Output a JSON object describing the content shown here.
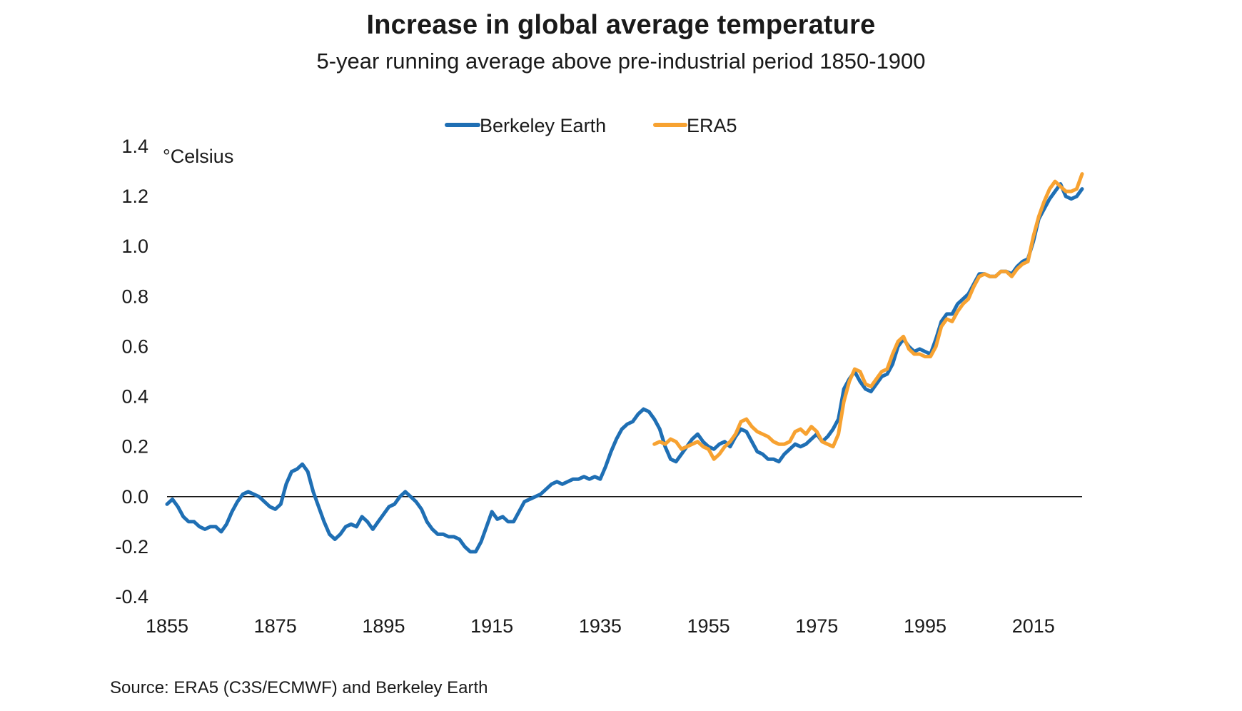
{
  "chart_data": {
    "type": "line",
    "title": "Increase in global average temperature",
    "subtitle": "5-year running average above pre-industrial period 1850-1900",
    "ylabel": "°Celsius",
    "xlabel": "",
    "source": "Source: ERA5 (C3S/ECMWF) and Berkeley Earth",
    "xlim": [
      1855,
      2024
    ],
    "ylim": [
      -0.4,
      1.4
    ],
    "x_ticks": [
      1855,
      1875,
      1895,
      1915,
      1935,
      1955,
      1975,
      1995,
      2015
    ],
    "x_tick_labels": [
      "1855",
      "1875",
      "1895",
      "1915",
      "1935",
      "1955",
      "1975",
      "1995",
      "2015"
    ],
    "y_ticks": [
      -0.4,
      -0.2,
      0.0,
      0.2,
      0.4,
      0.6,
      0.8,
      1.0,
      1.2,
      1.4
    ],
    "y_tick_labels": [
      "-0.4",
      "-0.2",
      "0.0",
      "0.2",
      "0.4",
      "0.6",
      "0.8",
      "1.0",
      "1.2",
      "1.4"
    ],
    "zero_line": 0,
    "grid": false,
    "legend_position": "top-center",
    "series": [
      {
        "name": "Berkeley Earth",
        "color": "#1f6fb4",
        "x": [
          1855,
          1856,
          1857,
          1858,
          1859,
          1860,
          1861,
          1862,
          1863,
          1864,
          1865,
          1866,
          1867,
          1868,
          1869,
          1870,
          1871,
          1872,
          1873,
          1874,
          1875,
          1876,
          1877,
          1878,
          1879,
          1880,
          1881,
          1882,
          1883,
          1884,
          1885,
          1886,
          1887,
          1888,
          1889,
          1890,
          1891,
          1892,
          1893,
          1894,
          1895,
          1896,
          1897,
          1898,
          1899,
          1900,
          1901,
          1902,
          1903,
          1904,
          1905,
          1906,
          1907,
          1908,
          1909,
          1910,
          1911,
          1912,
          1913,
          1914,
          1915,
          1916,
          1917,
          1918,
          1919,
          1920,
          1921,
          1922,
          1923,
          1924,
          1925,
          1926,
          1927,
          1928,
          1929,
          1930,
          1931,
          1932,
          1933,
          1934,
          1935,
          1936,
          1937,
          1938,
          1939,
          1940,
          1941,
          1942,
          1943,
          1944,
          1945,
          1946,
          1947,
          1948,
          1949,
          1950,
          1951,
          1952,
          1953,
          1954,
          1955,
          1956,
          1957,
          1958,
          1959,
          1960,
          1961,
          1962,
          1963,
          1964,
          1965,
          1966,
          1967,
          1968,
          1969,
          1970,
          1971,
          1972,
          1973,
          1974,
          1975,
          1976,
          1977,
          1978,
          1979,
          1980,
          1981,
          1982,
          1983,
          1984,
          1985,
          1986,
          1987,
          1988,
          1989,
          1990,
          1991,
          1992,
          1993,
          1994,
          1995,
          1996,
          1997,
          1998,
          1999,
          2000,
          2001,
          2002,
          2003,
          2004,
          2005,
          2006,
          2007,
          2008,
          2009,
          2010,
          2011,
          2012,
          2013,
          2014,
          2015,
          2016,
          2017,
          2018,
          2019,
          2020,
          2021,
          2022,
          2023,
          2024
        ],
        "values": [
          -0.03,
          -0.01,
          -0.04,
          -0.08,
          -0.1,
          -0.1,
          -0.12,
          -0.13,
          -0.12,
          -0.12,
          -0.14,
          -0.11,
          -0.06,
          -0.02,
          0.01,
          0.02,
          0.01,
          0.0,
          -0.02,
          -0.04,
          -0.05,
          -0.03,
          0.05,
          0.1,
          0.11,
          0.13,
          0.1,
          0.02,
          -0.04,
          -0.1,
          -0.15,
          -0.17,
          -0.15,
          -0.12,
          -0.11,
          -0.12,
          -0.08,
          -0.1,
          -0.13,
          -0.1,
          -0.07,
          -0.04,
          -0.03,
          0.0,
          0.02,
          0.0,
          -0.02,
          -0.05,
          -0.1,
          -0.13,
          -0.15,
          -0.15,
          -0.16,
          -0.16,
          -0.17,
          -0.2,
          -0.22,
          -0.22,
          -0.18,
          -0.12,
          -0.06,
          -0.09,
          -0.08,
          -0.1,
          -0.1,
          -0.06,
          -0.02,
          -0.01,
          0.0,
          0.01,
          0.03,
          0.05,
          0.06,
          0.05,
          0.06,
          0.07,
          0.07,
          0.08,
          0.07,
          0.08,
          0.07,
          0.12,
          0.18,
          0.23,
          0.27,
          0.29,
          0.3,
          0.33,
          0.35,
          0.34,
          0.31,
          0.27,
          0.2,
          0.15,
          0.14,
          0.17,
          0.2,
          0.23,
          0.25,
          0.22,
          0.2,
          0.19,
          0.21,
          0.22,
          0.2,
          0.24,
          0.27,
          0.26,
          0.22,
          0.18,
          0.17,
          0.15,
          0.15,
          0.14,
          0.17,
          0.19,
          0.21,
          0.2,
          0.21,
          0.23,
          0.25,
          0.22,
          0.24,
          0.27,
          0.31,
          0.43,
          0.47,
          0.5,
          0.46,
          0.43,
          0.42,
          0.45,
          0.48,
          0.49,
          0.53,
          0.6,
          0.63,
          0.6,
          0.58,
          0.59,
          0.58,
          0.57,
          0.63,
          0.7,
          0.73,
          0.73,
          0.77,
          0.79,
          0.81,
          0.85,
          0.89,
          0.89,
          0.88,
          0.88,
          0.9,
          0.9,
          0.89,
          0.92,
          0.94,
          0.95,
          1.02,
          1.11,
          1.15,
          1.19,
          1.22,
          1.25,
          1.2,
          1.19,
          1.2,
          1.23
        ]
      },
      {
        "name": "ERA5",
        "color": "#f7a231",
        "x": [
          1945,
          1946,
          1947,
          1948,
          1949,
          1950,
          1951,
          1952,
          1953,
          1954,
          1955,
          1956,
          1957,
          1958,
          1959,
          1960,
          1961,
          1962,
          1963,
          1964,
          1965,
          1966,
          1967,
          1968,
          1969,
          1970,
          1971,
          1972,
          1973,
          1974,
          1975,
          1976,
          1977,
          1978,
          1979,
          1980,
          1981,
          1982,
          1983,
          1984,
          1985,
          1986,
          1987,
          1988,
          1989,
          1990,
          1991,
          1992,
          1993,
          1994,
          1995,
          1996,
          1997,
          1998,
          1999,
          2000,
          2001,
          2002,
          2003,
          2004,
          2005,
          2006,
          2007,
          2008,
          2009,
          2010,
          2011,
          2012,
          2013,
          2014,
          2015,
          2016,
          2017,
          2018,
          2019,
          2020,
          2021,
          2022,
          2023,
          2024
        ],
        "values": [
          0.21,
          0.22,
          0.21,
          0.23,
          0.22,
          0.19,
          0.2,
          0.21,
          0.22,
          0.2,
          0.19,
          0.15,
          0.17,
          0.2,
          0.22,
          0.25,
          0.3,
          0.31,
          0.28,
          0.26,
          0.25,
          0.24,
          0.22,
          0.21,
          0.21,
          0.22,
          0.26,
          0.27,
          0.25,
          0.28,
          0.26,
          0.22,
          0.21,
          0.2,
          0.25,
          0.38,
          0.46,
          0.51,
          0.5,
          0.45,
          0.44,
          0.47,
          0.5,
          0.51,
          0.57,
          0.62,
          0.64,
          0.59,
          0.57,
          0.57,
          0.56,
          0.56,
          0.6,
          0.68,
          0.71,
          0.7,
          0.74,
          0.77,
          0.79,
          0.84,
          0.88,
          0.89,
          0.88,
          0.88,
          0.9,
          0.9,
          0.88,
          0.91,
          0.93,
          0.94,
          1.04,
          1.12,
          1.18,
          1.23,
          1.26,
          1.24,
          1.22,
          1.22,
          1.23,
          1.29
        ]
      }
    ]
  }
}
